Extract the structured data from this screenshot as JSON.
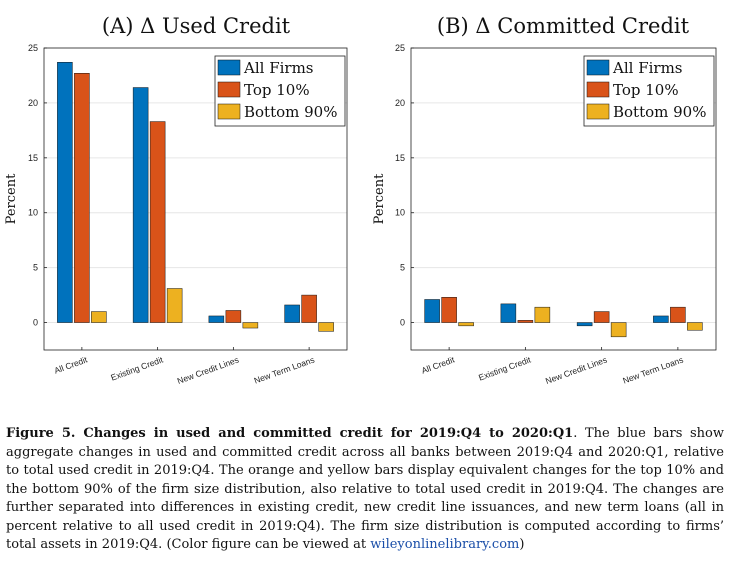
{
  "chart_data": [
    {
      "type": "bar",
      "title": "(A) Δ Used Credit",
      "xlabel": "",
      "ylabel": "Percent",
      "ylim": [
        -2.5,
        25
      ],
      "yticks": [
        0,
        5,
        10,
        15,
        20,
        25
      ],
      "grid": true,
      "legend_position": "top-right",
      "categories": [
        "All Credit",
        "Existing Credit",
        "New Credit Lines",
        "New Term Loans"
      ],
      "series": [
        {
          "name": "All Firms",
          "color": "#0072BD",
          "values": [
            23.7,
            21.4,
            0.6,
            1.6
          ]
        },
        {
          "name": "Top 10%",
          "color": "#D95319",
          "values": [
            22.7,
            18.3,
            1.1,
            2.5
          ]
        },
        {
          "name": "Bottom 90%",
          "color": "#EDB120",
          "values": [
            1.0,
            3.1,
            -0.5,
            -0.8
          ]
        }
      ]
    },
    {
      "type": "bar",
      "title": "(B) Δ Committed Credit",
      "xlabel": "",
      "ylabel": "Percent",
      "ylim": [
        -2.5,
        25
      ],
      "yticks": [
        0,
        5,
        10,
        15,
        20,
        25
      ],
      "grid": true,
      "legend_position": "top-right",
      "categories": [
        "All Credit",
        "Existing Credit",
        "New Credit Lines",
        "New Term Loans"
      ],
      "series": [
        {
          "name": "All Firms",
          "color": "#0072BD",
          "values": [
            2.1,
            1.7,
            -0.3,
            0.6
          ]
        },
        {
          "name": "Top 10%",
          "color": "#D95319",
          "values": [
            2.3,
            0.2,
            1.0,
            1.4
          ]
        },
        {
          "name": "Bottom 90%",
          "color": "#EDB120",
          "values": [
            -0.3,
            1.4,
            -1.3,
            -0.7
          ]
        }
      ]
    }
  ],
  "caption": {
    "title": "Figure 5. Changes in used and committed credit for 2019:Q4 to 2020:Q1",
    "body": ". The blue bars show aggregate changes in used and committed credit across all banks between 2019:Q4 and 2020:Q1, relative to total used credit in 2019:Q4. The orange and yellow bars display equivalent changes for the top 10% and the bottom 90% of the firm size distribution, also relative to total used credit in 2019:Q4. The changes are further separated into differences in existing credit, new credit line issuances, and new term loans (all in percent relative to all used credit in 2019:Q4). The firm size distribution is computed according to firms’ total assets in 2019:Q4. (Color figure can be viewed at ",
    "link": "wileyonlinelibrary.com",
    "end": ")"
  }
}
